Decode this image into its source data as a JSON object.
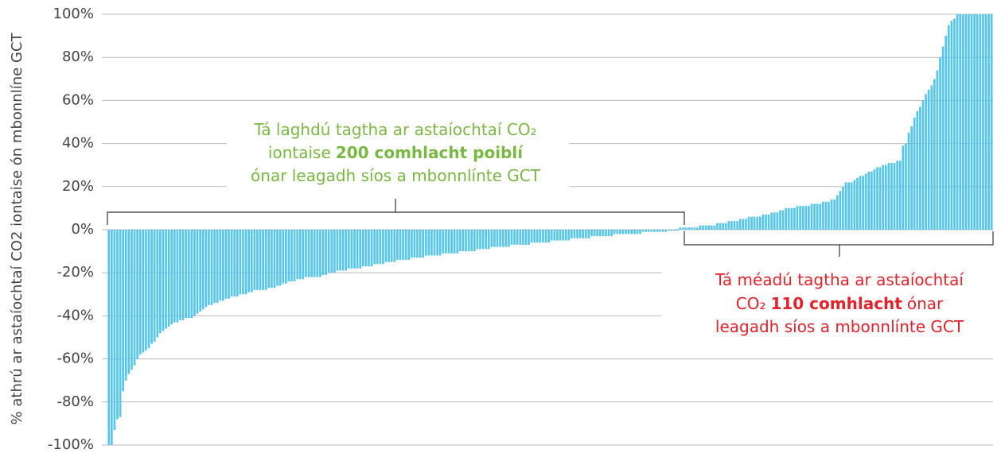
{
  "chart_data": {
    "type": "bar",
    "y_label": "% athrú ar astaíochtaí CO2 iontaise ón mbonnlíne GCT",
    "annotations": {
      "decrease": [
        [
          "Tá laghdú tagtha ar astaíochtaí CO₂"
        ],
        [
          "iontaise",
          "200 comhlacht poiblí"
        ],
        [
          "ónar leagadh síos a mbonnlínte GCT"
        ]
      ],
      "increase": [
        [
          "Tá méadú tagtha ar astaíochtaí"
        ],
        [
          "CO₂",
          "110 comhlacht",
          "ónar"
        ],
        [
          "leagadh síos a mbonnlínte GCT"
        ]
      ]
    },
    "color": "#56c6ec",
    "ylim": [
      -100,
      100
    ],
    "yticks": [
      {
        "value": -100,
        "label": "-100%"
      },
      {
        "value": -80,
        "label": "-80%"
      },
      {
        "value": -60,
        "label": "-60%"
      },
      {
        "value": -40,
        "label": "-40%"
      },
      {
        "value": -20,
        "label": "-20%"
      },
      {
        "value": 0,
        "label": "0%"
      },
      {
        "value": 20,
        "label": "20%"
      },
      {
        "value": 40,
        "label": "40%"
      },
      {
        "value": 60,
        "label": "60%"
      },
      {
        "value": 80,
        "label": "80%"
      },
      {
        "value": 100,
        "label": "100%"
      }
    ],
    "grid": true,
    "values": [
      -100,
      -100,
      -93,
      -88,
      -87,
      -75,
      -70,
      -67,
      -65,
      -63,
      -60,
      -58,
      -57,
      -56,
      -55,
      -53,
      -52,
      -50,
      -48,
      -47,
      -46,
      -45,
      -44,
      -43,
      -43,
      -42,
      -42,
      -41,
      -41,
      -41,
      -40,
      -39,
      -38,
      -37,
      -36,
      -35,
      -35,
      -34,
      -34,
      -33,
      -33,
      -32,
      -32,
      -31,
      -31,
      -31,
      -30,
      -30,
      -30,
      -29,
      -29,
      -28,
      -28,
      -28,
      -28,
      -28,
      -27,
      -27,
      -27,
      -26,
      -26,
      -25,
      -25,
      -24,
      -24,
      -24,
      -23,
      -23,
      -23,
      -22,
      -22,
      -22,
      -22,
      -22,
      -22,
      -21,
      -21,
      -20,
      -20,
      -20,
      -19,
      -19,
      -19,
      -19,
      -18,
      -18,
      -18,
      -18,
      -18,
      -17,
      -17,
      -17,
      -17,
      -16,
      -16,
      -16,
      -16,
      -15,
      -15,
      -15,
      -15,
      -14,
      -14,
      -14,
      -14,
      -14,
      -13,
      -13,
      -13,
      -13,
      -13,
      -12,
      -12,
      -12,
      -12,
      -12,
      -12,
      -11,
      -11,
      -11,
      -11,
      -11,
      -11,
      -10,
      -10,
      -10,
      -10,
      -10,
      -10,
      -9,
      -9,
      -9,
      -9,
      -9,
      -8,
      -8,
      -8,
      -8,
      -8,
      -8,
      -8,
      -7,
      -7,
      -7,
      -7,
      -7,
      -7,
      -7,
      -6,
      -6,
      -6,
      -6,
      -6,
      -6,
      -6,
      -5,
      -5,
      -5,
      -5,
      -5,
      -5,
      -5,
      -4,
      -4,
      -4,
      -4,
      -4,
      -4,
      -4,
      -3,
      -3,
      -3,
      -3,
      -3,
      -3,
      -3,
      -3,
      -2,
      -2,
      -2,
      -2,
      -2,
      -2,
      -2,
      -2,
      -2,
      -2,
      -1,
      -1,
      -1,
      -1,
      -1,
      -1,
      -1,
      -1,
      -1,
      -0.5,
      -0.5,
      -0.5,
      -0.5,
      1,
      1,
      1,
      1,
      1,
      1,
      1,
      2,
      2,
      2,
      2,
      2,
      2,
      3,
      3,
      3,
      3,
      4,
      4,
      4,
      4,
      5,
      5,
      5,
      6,
      6,
      6,
      6,
      6,
      7,
      7,
      7,
      8,
      8,
      8,
      9,
      9,
      10,
      10,
      10,
      10,
      11,
      11,
      11,
      11,
      11,
      12,
      12,
      12,
      12,
      13,
      13,
      13,
      14,
      14,
      16,
      18,
      20,
      22,
      22,
      22,
      23,
      24,
      25,
      25,
      26,
      27,
      27,
      28,
      29,
      29,
      30,
      30,
      31,
      31,
      31,
      32,
      32,
      39,
      40,
      45,
      48,
      52,
      55,
      57,
      60,
      63,
      65,
      67,
      70,
      74,
      80,
      85,
      90,
      95,
      97,
      98,
      100,
      100,
      100,
      100,
      100,
      100,
      100,
      100,
      100,
      100,
      100,
      100,
      100
    ]
  }
}
